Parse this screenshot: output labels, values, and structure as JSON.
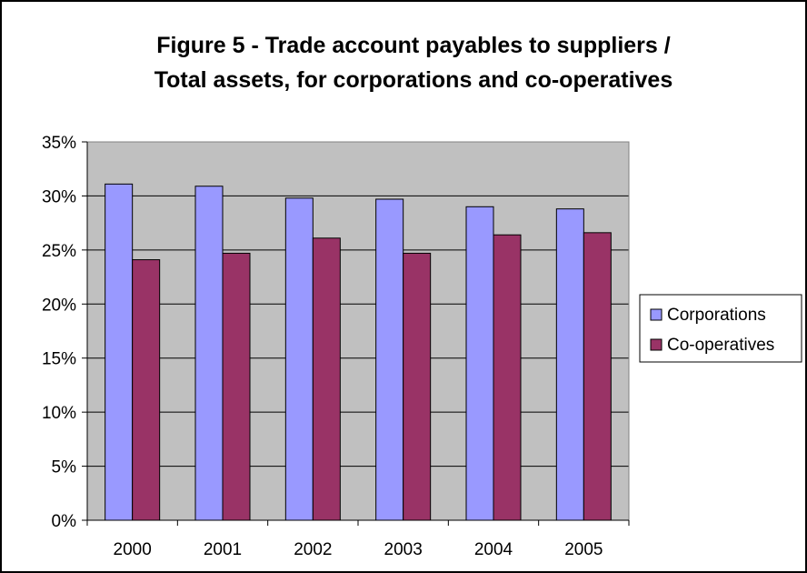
{
  "chart_data": {
    "type": "bar",
    "title_lines": [
      "Figure 5 - Trade account payables to suppliers /",
      "Total assets, for corporations and co-operatives"
    ],
    "categories": [
      "2000",
      "2001",
      "2002",
      "2003",
      "2004",
      "2005"
    ],
    "series": [
      {
        "name": "Corporations",
        "values": [
          31.1,
          30.9,
          29.8,
          29.7,
          29.0,
          28.8
        ],
        "color": "#9999ff"
      },
      {
        "name": "Co-operatives",
        "values": [
          24.1,
          24.7,
          26.1,
          24.7,
          26.4,
          26.6
        ],
        "color": "#993366"
      }
    ],
    "ylim": [
      0,
      35
    ],
    "y_ticks": [
      "0%",
      "5%",
      "10%",
      "15%",
      "20%",
      "25%",
      "30%",
      "35%"
    ],
    "plot_background": "#c0c0c0",
    "grid": true,
    "legend_position": "right"
  }
}
